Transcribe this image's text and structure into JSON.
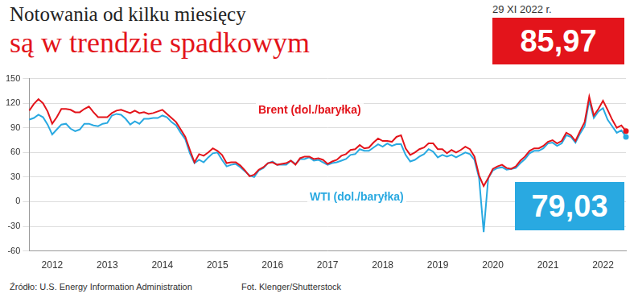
{
  "chart_data": {
    "type": "line",
    "title": "Notowania od kilku miesięcy",
    "subtitle": "są w trendzie spadkowym",
    "date_label": "29 XI 2022 r.",
    "source": "Źródło: U.S. Energy Information Administration",
    "credit": "Fot. Klenger/Shutterstock",
    "categories": [
      null,
      null,
      null,
      null,
      null,
      "2012",
      null,
      null,
      null,
      null,
      null,
      null,
      null,
      null,
      null,
      null,
      null,
      "2013",
      null,
      null,
      null,
      null,
      null,
      null,
      null,
      null,
      null,
      null,
      null,
      "2014",
      null,
      null,
      null,
      null,
      null,
      null,
      null,
      null,
      null,
      null,
      null,
      "2015",
      null,
      null,
      null,
      null,
      null,
      null,
      null,
      null,
      null,
      null,
      null,
      "2016",
      null,
      null,
      null,
      null,
      null,
      null,
      null,
      null,
      null,
      null,
      null,
      "2017",
      null,
      null,
      null,
      null,
      null,
      null,
      null,
      null,
      null,
      null,
      null,
      "2018",
      null,
      null,
      null,
      null,
      null,
      null,
      null,
      null,
      null,
      null,
      null,
      "2019",
      null,
      null,
      null,
      null,
      null,
      null,
      null,
      null,
      null,
      null,
      null,
      "2020",
      null,
      null,
      null,
      null,
      null,
      null,
      null,
      null,
      null,
      null,
      null,
      "2021",
      null,
      null,
      null,
      null,
      null,
      null,
      null,
      null,
      null,
      null,
      null,
      "2022",
      null,
      null,
      null,
      null,
      null
    ],
    "series": [
      {
        "name": "Brent (dol./baryłka)",
        "color": "#e3141b",
        "last_value": {
          "value": 85.97,
          "label": "85,97"
        },
        "values": [
          111,
          119,
          125,
          120,
          110,
          95,
          103,
          113,
          113,
          112,
          109,
          109,
          113,
          116,
          109,
          103,
          103,
          103,
          108,
          111,
          112,
          110,
          108,
          111,
          108,
          109,
          107,
          108,
          110,
          112,
          107,
          102,
          97,
          88,
          79,
          63,
          48,
          58,
          56,
          60,
          65,
          62,
          57,
          47,
          48,
          48,
          44,
          38,
          31,
          33,
          39,
          42,
          47,
          48,
          45,
          46,
          47,
          50,
          45,
          53,
          55,
          55,
          52,
          53,
          51,
          46,
          49,
          51,
          56,
          58,
          63,
          64,
          69,
          65,
          66,
          72,
          77,
          74,
          74,
          73,
          79,
          81,
          65,
          57,
          60,
          64,
          66,
          71,
          71,
          64,
          64,
          59,
          63,
          60,
          63,
          67,
          64,
          55,
          32,
          19,
          29,
          40,
          43,
          45,
          41,
          40,
          43,
          50,
          55,
          62,
          65,
          65,
          68,
          73,
          75,
          71,
          74,
          84,
          81,
          74,
          86,
          97,
          128,
          105,
          113,
          123,
          112,
          100,
          90,
          93,
          85.97
        ]
      },
      {
        "name": "WTI (dol./baryłka)",
        "color": "#29a9e1",
        "last_value": {
          "value": 79.03,
          "label": "79,03"
        },
        "values": [
          100,
          102,
          106,
          103,
          94,
          82,
          88,
          94,
          95,
          89,
          86,
          88,
          95,
          95,
          93,
          92,
          95,
          96,
          105,
          107,
          106,
          101,
          94,
          98,
          95,
          101,
          101,
          102,
          102,
          105,
          103,
          97,
          93,
          84,
          76,
          59,
          47,
          51,
          48,
          54,
          59,
          60,
          51,
          43,
          45,
          46,
          42,
          37,
          32,
          30,
          38,
          41,
          47,
          49,
          45,
          45,
          45,
          50,
          46,
          52,
          52,
          54,
          50,
          51,
          48,
          45,
          47,
          48,
          50,
          52,
          57,
          58,
          64,
          62,
          62,
          66,
          70,
          67,
          71,
          68,
          70,
          70,
          57,
          49,
          51,
          55,
          58,
          64,
          61,
          54,
          57,
          55,
          57,
          54,
          57,
          60,
          58,
          51,
          29,
          -37,
          29,
          38,
          41,
          42,
          39,
          40,
          41,
          47,
          52,
          59,
          62,
          62,
          65,
          71,
          72,
          68,
          71,
          81,
          79,
          72,
          83,
          92,
          123,
          102,
          110,
          114,
          100,
          92,
          84,
          87,
          79.03
        ]
      }
    ],
    "ylim": [
      -60,
      150
    ],
    "yticks": [
      -60,
      -30,
      0,
      30,
      60,
      90,
      120,
      150
    ],
    "grid": true
  }
}
